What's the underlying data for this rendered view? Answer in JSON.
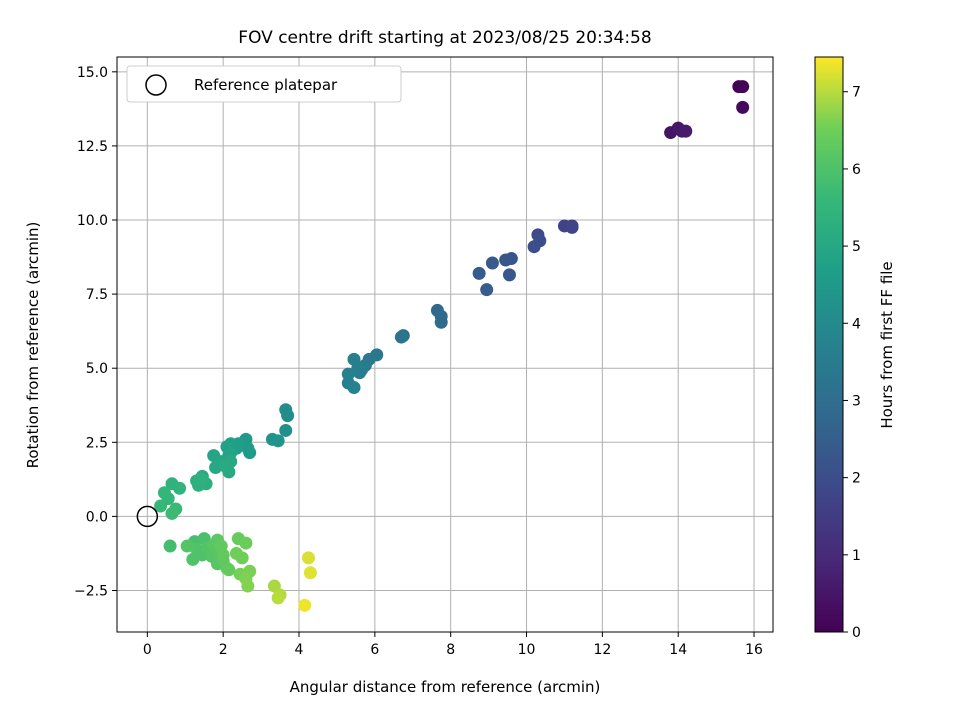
{
  "chart_data": {
    "type": "scatter",
    "title": "FOV centre drift starting at 2023/08/25 20:34:58",
    "xlabel": "Angular distance from reference (arcmin)",
    "ylabel": "Rotation from reference (arcmin)",
    "xlim": [
      -0.8,
      16.5
    ],
    "ylim": [
      -3.9,
      15.5
    ],
    "xticks": [
      "0",
      "2",
      "4",
      "6",
      "8",
      "10",
      "12",
      "14",
      "16"
    ],
    "yticks": [
      "−2.5",
      "0.0",
      "2.5",
      "5.0",
      "7.5",
      "10.0",
      "12.5",
      "15.0"
    ],
    "grid": true,
    "legend": {
      "position": "top-left",
      "label": "Reference platepar"
    },
    "reference_point": {
      "x": 0,
      "y": 0
    },
    "colorbar": {
      "label": "Hours from first FF file",
      "range": [
        0,
        7.45
      ],
      "ticks": [
        "0",
        "1",
        "2",
        "3",
        "4",
        "5",
        "6",
        "7"
      ],
      "colormap": "viridis"
    },
    "points": [
      {
        "x": 15.6,
        "y": 14.5,
        "h": 0.05
      },
      {
        "x": 15.7,
        "y": 14.5,
        "h": 0.1
      },
      {
        "x": 15.7,
        "y": 13.8,
        "h": 0.2
      },
      {
        "x": 13.8,
        "y": 12.95,
        "h": 0.45
      },
      {
        "x": 14.0,
        "y": 13.1,
        "h": 0.5
      },
      {
        "x": 14.1,
        "y": 13.0,
        "h": 0.55
      },
      {
        "x": 14.2,
        "y": 13.0,
        "h": 0.6
      },
      {
        "x": 11.2,
        "y": 9.8,
        "h": 1.6
      },
      {
        "x": 11.0,
        "y": 9.8,
        "h": 1.7
      },
      {
        "x": 11.2,
        "y": 9.75,
        "h": 1.75
      },
      {
        "x": 10.3,
        "y": 9.5,
        "h": 1.95
      },
      {
        "x": 10.35,
        "y": 9.3,
        "h": 2.0
      },
      {
        "x": 10.2,
        "y": 9.1,
        "h": 2.05
      },
      {
        "x": 9.6,
        "y": 8.7,
        "h": 2.2
      },
      {
        "x": 9.45,
        "y": 8.65,
        "h": 2.25
      },
      {
        "x": 9.55,
        "y": 8.15,
        "h": 2.3
      },
      {
        "x": 9.1,
        "y": 8.55,
        "h": 2.35
      },
      {
        "x": 8.75,
        "y": 8.2,
        "h": 2.4
      },
      {
        "x": 8.95,
        "y": 7.65,
        "h": 2.45
      },
      {
        "x": 7.65,
        "y": 6.95,
        "h": 2.8
      },
      {
        "x": 7.75,
        "y": 6.75,
        "h": 2.85
      },
      {
        "x": 7.75,
        "y": 6.55,
        "h": 2.9
      },
      {
        "x": 6.75,
        "y": 6.1,
        "h": 3.1
      },
      {
        "x": 6.7,
        "y": 6.05,
        "h": 3.15
      },
      {
        "x": 6.05,
        "y": 5.45,
        "h": 3.35
      },
      {
        "x": 5.85,
        "y": 5.3,
        "h": 3.4
      },
      {
        "x": 5.75,
        "y": 5.1,
        "h": 3.45
      },
      {
        "x": 5.65,
        "y": 4.95,
        "h": 3.5
      },
      {
        "x": 5.6,
        "y": 4.85,
        "h": 3.55
      },
      {
        "x": 5.45,
        "y": 5.3,
        "h": 3.6
      },
      {
        "x": 5.55,
        "y": 5.0,
        "h": 3.62
      },
      {
        "x": 5.3,
        "y": 4.8,
        "h": 3.65
      },
      {
        "x": 5.3,
        "y": 4.5,
        "h": 3.7
      },
      {
        "x": 5.45,
        "y": 4.35,
        "h": 3.75
      },
      {
        "x": 3.65,
        "y": 3.6,
        "h": 4.05
      },
      {
        "x": 3.7,
        "y": 3.4,
        "h": 4.1
      },
      {
        "x": 3.65,
        "y": 2.9,
        "h": 4.15
      },
      {
        "x": 3.3,
        "y": 2.6,
        "h": 4.3
      },
      {
        "x": 3.45,
        "y": 2.55,
        "h": 4.35
      },
      {
        "x": 2.6,
        "y": 2.6,
        "h": 4.5
      },
      {
        "x": 2.65,
        "y": 2.3,
        "h": 4.55
      },
      {
        "x": 2.7,
        "y": 2.15,
        "h": 4.6
      },
      {
        "x": 2.4,
        "y": 2.45,
        "h": 4.65
      },
      {
        "x": 2.35,
        "y": 2.3,
        "h": 4.7
      },
      {
        "x": 2.2,
        "y": 2.45,
        "h": 4.72
      },
      {
        "x": 2.1,
        "y": 2.35,
        "h": 4.75
      },
      {
        "x": 2.2,
        "y": 2.15,
        "h": 4.8
      },
      {
        "x": 2.15,
        "y": 2.05,
        "h": 4.85
      },
      {
        "x": 1.75,
        "y": 2.05,
        "h": 4.9
      },
      {
        "x": 1.95,
        "y": 1.85,
        "h": 4.95
      },
      {
        "x": 1.8,
        "y": 1.65,
        "h": 5.0
      },
      {
        "x": 2.2,
        "y": 1.85,
        "h": 5.02
      },
      {
        "x": 2.15,
        "y": 1.5,
        "h": 5.05
      },
      {
        "x": 2.05,
        "y": 1.7,
        "h": 5.1
      },
      {
        "x": 1.45,
        "y": 1.35,
        "h": 5.15
      },
      {
        "x": 1.3,
        "y": 1.2,
        "h": 5.2
      },
      {
        "x": 1.55,
        "y": 1.1,
        "h": 5.25
      },
      {
        "x": 1.35,
        "y": 1.05,
        "h": 5.3
      },
      {
        "x": 1.4,
        "y": 1.25,
        "h": 5.32
      },
      {
        "x": 0.65,
        "y": 1.1,
        "h": 5.4
      },
      {
        "x": 0.85,
        "y": 0.95,
        "h": 5.45
      },
      {
        "x": 0.45,
        "y": 0.8,
        "h": 5.5
      },
      {
        "x": 0.55,
        "y": 0.6,
        "h": 5.55
      },
      {
        "x": 0.35,
        "y": 0.35,
        "h": 5.6
      },
      {
        "x": 0.75,
        "y": 0.25,
        "h": 5.65
      },
      {
        "x": 0.65,
        "y": 0.1,
        "h": 5.7
      },
      {
        "x": 0.6,
        "y": -1.0,
        "h": 5.85
      },
      {
        "x": 1.25,
        "y": -0.85,
        "h": 5.9
      },
      {
        "x": 1.5,
        "y": -0.75,
        "h": 5.95
      },
      {
        "x": 1.45,
        "y": -1.3,
        "h": 6.0
      },
      {
        "x": 1.2,
        "y": -1.45,
        "h": 6.02
      },
      {
        "x": 1.3,
        "y": -1.1,
        "h": 6.05
      },
      {
        "x": 1.6,
        "y": -1.05,
        "h": 6.08
      },
      {
        "x": 1.05,
        "y": -1.0,
        "h": 6.1
      },
      {
        "x": 1.7,
        "y": -1.35,
        "h": 6.12
      },
      {
        "x": 1.85,
        "y": -1.6,
        "h": 6.15
      },
      {
        "x": 1.75,
        "y": -0.95,
        "h": 6.18
      },
      {
        "x": 1.9,
        "y": -1.2,
        "h": 6.2
      },
      {
        "x": 1.85,
        "y": -0.8,
        "h": 6.22
      },
      {
        "x": 2.0,
        "y": -1.5,
        "h": 6.25
      },
      {
        "x": 2.1,
        "y": -1.75,
        "h": 6.28
      },
      {
        "x": 1.95,
        "y": -1.0,
        "h": 6.3
      },
      {
        "x": 2.0,
        "y": -1.3,
        "h": 6.32
      },
      {
        "x": 2.15,
        "y": -1.8,
        "h": 6.35
      },
      {
        "x": 2.4,
        "y": -0.75,
        "h": 6.4
      },
      {
        "x": 2.6,
        "y": -0.9,
        "h": 6.45
      },
      {
        "x": 2.35,
        "y": -1.25,
        "h": 6.5
      },
      {
        "x": 2.5,
        "y": -1.4,
        "h": 6.52
      },
      {
        "x": 2.45,
        "y": -1.95,
        "h": 6.55
      },
      {
        "x": 2.7,
        "y": -1.85,
        "h": 6.6
      },
      {
        "x": 2.6,
        "y": -2.1,
        "h": 6.62
      },
      {
        "x": 2.65,
        "y": -2.35,
        "h": 6.65
      },
      {
        "x": 3.35,
        "y": -2.35,
        "h": 6.9
      },
      {
        "x": 3.5,
        "y": -2.65,
        "h": 6.95
      },
      {
        "x": 3.45,
        "y": -2.75,
        "h": 7.0
      },
      {
        "x": 4.25,
        "y": -1.4,
        "h": 7.2
      },
      {
        "x": 4.3,
        "y": -1.9,
        "h": 7.25
      },
      {
        "x": 4.15,
        "y": -3.0,
        "h": 7.35
      }
    ]
  }
}
